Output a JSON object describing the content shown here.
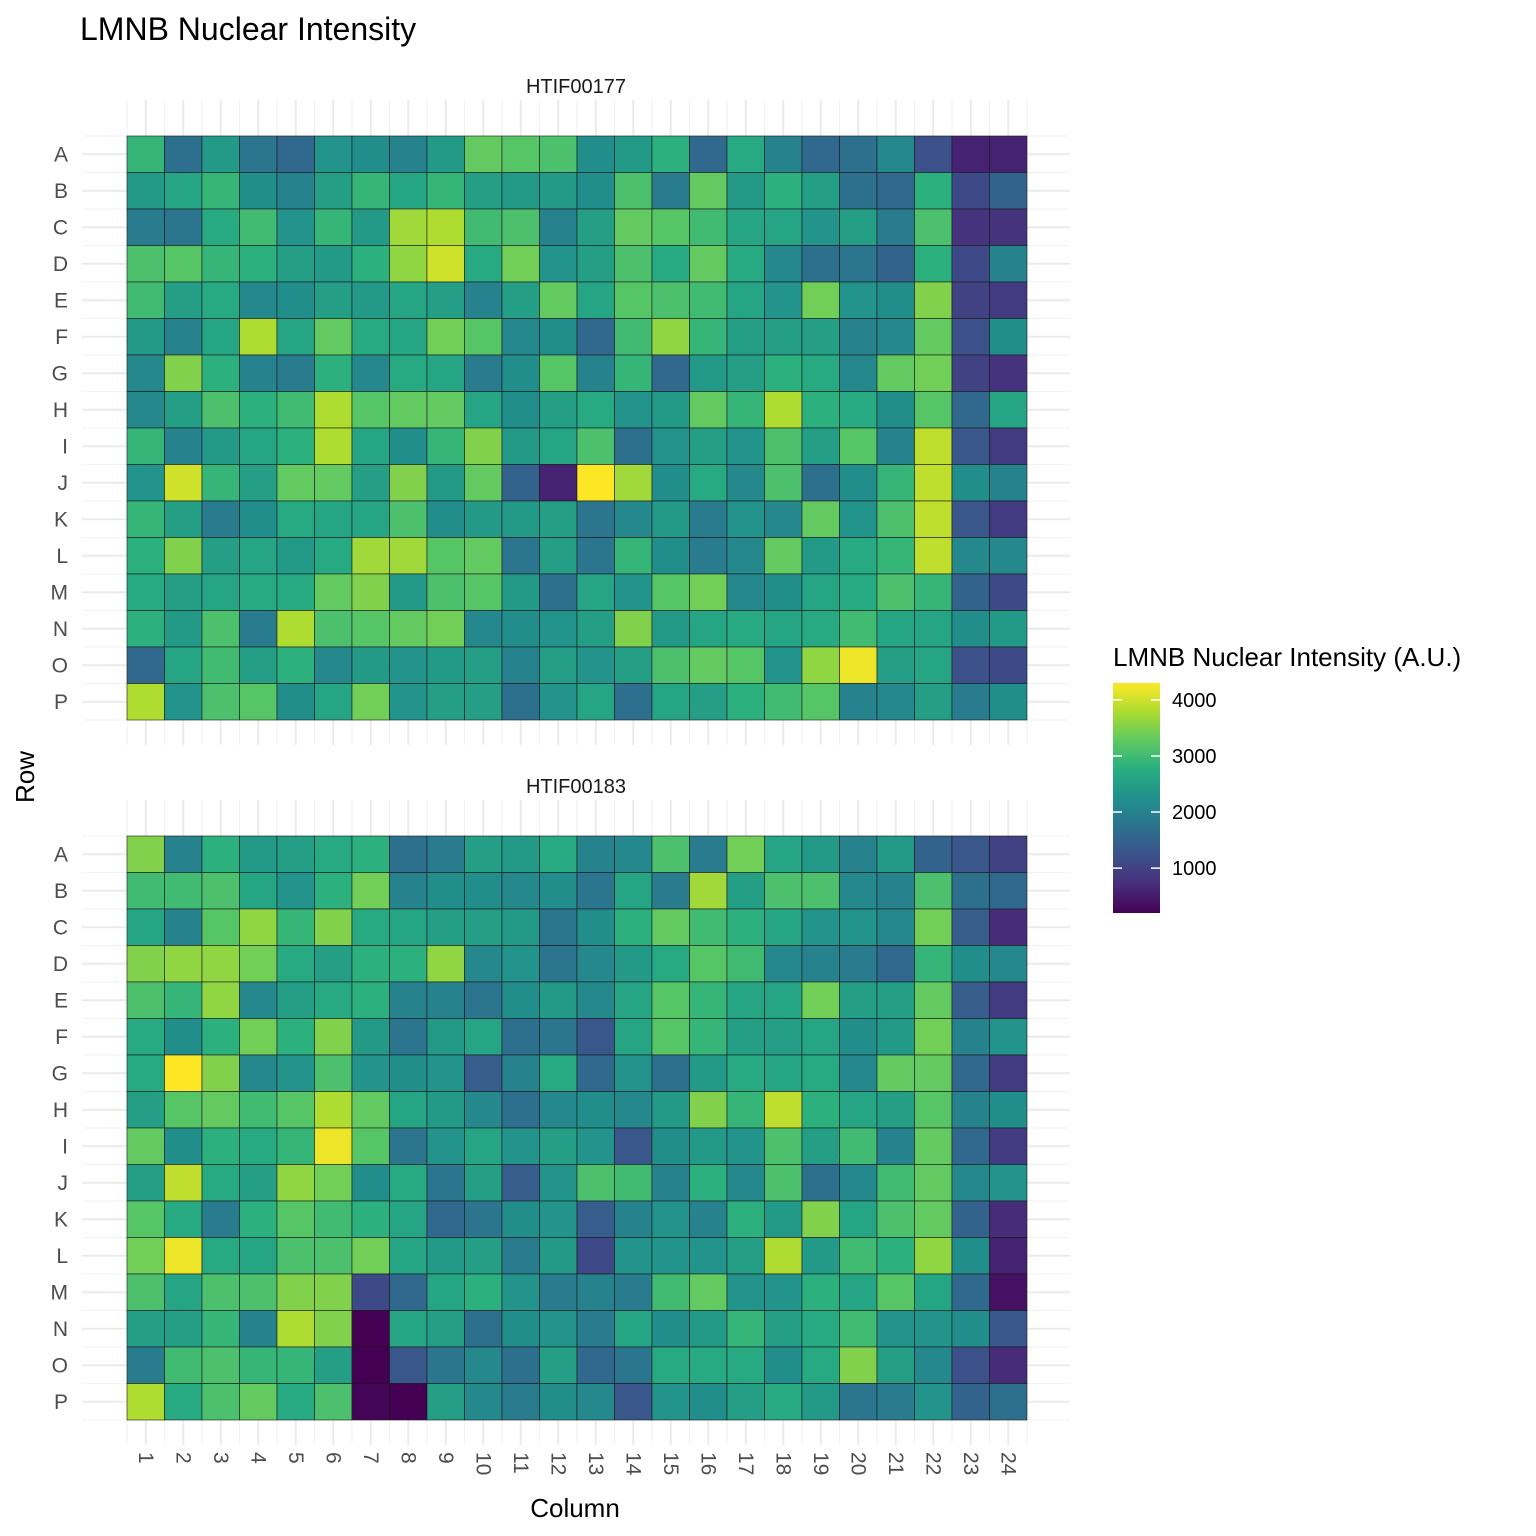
{
  "chart_data": {
    "type": "heatmap",
    "title": "LMNB Nuclear Intensity",
    "xlabel": "Column",
    "ylabel": "Row",
    "columns": [
      "1",
      "2",
      "3",
      "4",
      "5",
      "6",
      "7",
      "8",
      "9",
      "10",
      "11",
      "12",
      "13",
      "14",
      "15",
      "16",
      "17",
      "18",
      "19",
      "20",
      "21",
      "22",
      "23",
      "24"
    ],
    "rows": [
      "A",
      "B",
      "C",
      "D",
      "E",
      "F",
      "G",
      "H",
      "I",
      "J",
      "K",
      "L",
      "M",
      "N",
      "O",
      "P"
    ],
    "legend": {
      "title": "LMNB Nuclear Intensity (A.U.)",
      "ticks": [
        1000,
        2000,
        3000,
        4000
      ],
      "range": [
        200,
        4300
      ],
      "colormap": "viridis",
      "position": "right"
    },
    "grid": true,
    "panels": [
      {
        "name": "HTIF00177",
        "values": [
          [
            2900,
            1700,
            2400,
            1800,
            1600,
            2300,
            2200,
            2000,
            2400,
            3300,
            3200,
            3100,
            2200,
            2400,
            2800,
            1600,
            2700,
            2000,
            1600,
            1700,
            2100,
            1200,
            600,
            600
          ],
          [
            2400,
            2600,
            2900,
            2200,
            2000,
            2500,
            2900,
            2600,
            2900,
            2500,
            2400,
            2400,
            2200,
            3100,
            1900,
            3300,
            2400,
            2800,
            2500,
            1700,
            1600,
            2800,
            1100,
            1500
          ],
          [
            1900,
            1800,
            2700,
            3000,
            2300,
            2900,
            2400,
            3700,
            3800,
            3000,
            3100,
            2000,
            2500,
            3300,
            3200,
            3000,
            2600,
            2600,
            2300,
            2500,
            1900,
            3100,
            800,
            800
          ],
          [
            3100,
            3200,
            2900,
            2800,
            2500,
            2400,
            2800,
            3600,
            4000,
            2700,
            3400,
            2300,
            2500,
            3100,
            2700,
            3300,
            2700,
            2100,
            1700,
            1800,
            1500,
            2800,
            1100,
            2000
          ],
          [
            3000,
            2500,
            2700,
            2100,
            2200,
            2500,
            2400,
            2600,
            2500,
            2000,
            2500,
            3300,
            2600,
            3200,
            3100,
            3000,
            2600,
            2300,
            3400,
            2300,
            2200,
            3500,
            1000,
            900
          ],
          [
            2400,
            2000,
            2600,
            3800,
            2600,
            3300,
            2700,
            2600,
            3400,
            3200,
            2100,
            2200,
            1600,
            3000,
            3600,
            2900,
            2500,
            2500,
            2500,
            2000,
            2100,
            3300,
            1200,
            2200
          ],
          [
            2100,
            3500,
            2800,
            2000,
            1900,
            2800,
            2100,
            2700,
            2600,
            1900,
            2200,
            3200,
            2000,
            2900,
            1600,
            2400,
            2500,
            2800,
            2700,
            2100,
            3300,
            3400,
            1000,
            800
          ],
          [
            2100,
            2500,
            3100,
            2800,
            3000,
            3800,
            3200,
            3300,
            3300,
            2600,
            2200,
            2500,
            2700,
            2300,
            2400,
            3300,
            2900,
            3800,
            2800,
            2700,
            2200,
            3200,
            1600,
            2600
          ],
          [
            2900,
            2000,
            2400,
            2600,
            2800,
            3800,
            2600,
            2200,
            2900,
            3500,
            2400,
            2600,
            3100,
            1700,
            2300,
            2500,
            2300,
            3100,
            2500,
            3200,
            2000,
            3900,
            1300,
            900
          ],
          [
            2300,
            4000,
            2900,
            2500,
            3300,
            3300,
            2500,
            3500,
            2400,
            3300,
            1500,
            600,
            4300,
            3700,
            2200,
            2700,
            2100,
            3100,
            1700,
            2200,
            2900,
            3900,
            2200,
            2000
          ],
          [
            2900,
            2500,
            1900,
            2200,
            2700,
            2600,
            2600,
            3100,
            2200,
            2400,
            2400,
            2500,
            1800,
            2100,
            2400,
            1900,
            2300,
            2100,
            3300,
            2300,
            3100,
            3900,
            1300,
            900
          ],
          [
            2800,
            3500,
            2500,
            2600,
            2400,
            2700,
            3700,
            3700,
            3200,
            3300,
            1800,
            2500,
            1800,
            2900,
            2200,
            1900,
            2100,
            3300,
            2400,
            2700,
            2900,
            3900,
            2100,
            2100
          ],
          [
            2700,
            2500,
            2600,
            2700,
            2700,
            3300,
            3500,
            2400,
            3100,
            3200,
            2400,
            1700,
            2600,
            2300,
            3200,
            3400,
            2100,
            2200,
            2600,
            2700,
            3100,
            2900,
            1500,
            1100
          ],
          [
            2800,
            2400,
            3100,
            1900,
            3800,
            3100,
            3200,
            3300,
            3400,
            2100,
            2200,
            2300,
            2500,
            3500,
            2400,
            2600,
            2700,
            2600,
            2700,
            3000,
            2600,
            2600,
            2200,
            2400
          ],
          [
            1600,
            2600,
            3000,
            2500,
            2800,
            2100,
            2400,
            2300,
            2400,
            2500,
            2000,
            2500,
            2300,
            2500,
            3100,
            3300,
            3200,
            2300,
            3600,
            4200,
            2500,
            2600,
            1200,
            1100
          ],
          [
            3800,
            2300,
            3100,
            3200,
            2200,
            2600,
            3400,
            2300,
            2500,
            2500,
            1700,
            2300,
            2600,
            1700,
            2600,
            2500,
            2800,
            3000,
            3200,
            2000,
            2100,
            2500,
            1900,
            2200
          ]
        ]
      },
      {
        "name": "HTIF00183",
        "values": [
          [
            3500,
            2000,
            2800,
            2400,
            2500,
            2700,
            2800,
            1700,
            1900,
            2500,
            2400,
            2700,
            2000,
            2100,
            3100,
            1900,
            3400,
            2600,
            2400,
            2000,
            2400,
            1500,
            1300,
            1000
          ],
          [
            3000,
            3000,
            3100,
            2600,
            2300,
            2800,
            3400,
            2000,
            2200,
            2200,
            2100,
            2200,
            1800,
            2600,
            1900,
            3700,
            2500,
            3100,
            3100,
            2100,
            2000,
            3100,
            1700,
            1600
          ],
          [
            2600,
            2000,
            3200,
            3600,
            2900,
            3500,
            2700,
            2600,
            2500,
            2500,
            2400,
            1800,
            2200,
            2800,
            3300,
            3000,
            2800,
            2600,
            2300,
            2300,
            2100,
            3400,
            1400,
            700
          ],
          [
            3500,
            3600,
            3600,
            3400,
            2700,
            2500,
            2800,
            2800,
            3600,
            2100,
            2300,
            1800,
            2100,
            2400,
            2700,
            3200,
            3000,
            2100,
            2000,
            1900,
            1600,
            2900,
            2200,
            2100
          ],
          [
            3100,
            2900,
            3600,
            2100,
            2500,
            2700,
            2800,
            2000,
            2000,
            1800,
            2200,
            2400,
            2100,
            2600,
            3200,
            2900,
            2600,
            2600,
            3400,
            2500,
            2500,
            3300,
            1400,
            900
          ],
          [
            2700,
            2200,
            2800,
            3400,
            2800,
            3500,
            2400,
            1800,
            2400,
            2600,
            1700,
            1800,
            1300,
            2600,
            3200,
            2900,
            2500,
            2500,
            2600,
            2200,
            2400,
            3400,
            2000,
            2300
          ],
          [
            2700,
            4300,
            3500,
            2100,
            2300,
            3100,
            2300,
            2200,
            2300,
            1400,
            2000,
            2700,
            1600,
            2300,
            1700,
            2400,
            2700,
            2600,
            2700,
            2100,
            3300,
            3300,
            1600,
            900
          ],
          [
            2500,
            3200,
            3300,
            3000,
            3200,
            3800,
            3300,
            2600,
            2400,
            2100,
            1700,
            2100,
            2200,
            2100,
            2400,
            3500,
            2900,
            3900,
            2800,
            2600,
            2500,
            3200,
            2000,
            2200
          ],
          [
            3300,
            2200,
            2800,
            2700,
            2900,
            4200,
            3200,
            1800,
            2300,
            2600,
            2300,
            2500,
            2300,
            1300,
            2200,
            2400,
            2300,
            3100,
            2500,
            3000,
            2000,
            3300,
            1600,
            900
          ],
          [
            2500,
            3900,
            2700,
            2500,
            3600,
            3400,
            2200,
            2700,
            1800,
            2500,
            1400,
            2300,
            3100,
            3000,
            2000,
            2800,
            2100,
            3100,
            1700,
            2100,
            3000,
            3300,
            2100,
            2300
          ],
          [
            3200,
            2700,
            1900,
            2800,
            3200,
            3000,
            2800,
            2600,
            1600,
            1800,
            2200,
            2300,
            1400,
            2000,
            2300,
            2000,
            2800,
            2400,
            3500,
            2600,
            3100,
            3300,
            1500,
            700
          ],
          [
            3400,
            4200,
            2700,
            2600,
            3100,
            3100,
            3400,
            2600,
            2400,
            2500,
            1900,
            2400,
            1100,
            2300,
            2300,
            2300,
            2500,
            3800,
            2400,
            3000,
            2800,
            3600,
            2200,
            600
          ],
          [
            3100,
            2600,
            3100,
            3100,
            3500,
            3500,
            1100,
            1600,
            2600,
            2800,
            2300,
            1900,
            2000,
            1900,
            3000,
            3300,
            2300,
            2300,
            2800,
            2600,
            3200,
            2600,
            1600,
            400
          ],
          [
            2500,
            2500,
            2900,
            2000,
            3800,
            3500,
            200,
            2600,
            2500,
            1700,
            2200,
            2300,
            1900,
            2600,
            2200,
            2400,
            2900,
            2500,
            2700,
            3000,
            2300,
            2300,
            2200,
            1300
          ],
          [
            1900,
            3000,
            3100,
            2900,
            2900,
            2500,
            200,
            1300,
            1800,
            2100,
            1700,
            2500,
            1600,
            1800,
            2700,
            2700,
            2700,
            2200,
            2700,
            3500,
            2500,
            2100,
            1200,
            700
          ],
          [
            3800,
            2700,
            3100,
            3300,
            2700,
            3100,
            250,
            200,
            2500,
            2100,
            1900,
            2200,
            2100,
            1300,
            2300,
            2200,
            2500,
            2700,
            2400,
            1800,
            1900,
            2300,
            1500,
            1700
          ]
        ]
      }
    ]
  }
}
